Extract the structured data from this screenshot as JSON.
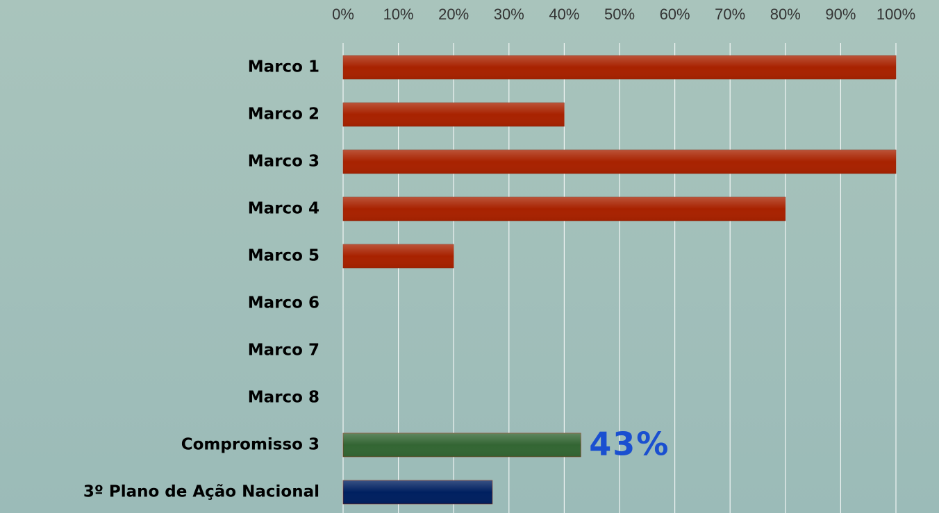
{
  "chart_data": {
    "type": "hbar",
    "categories": [
      "Marco 1",
      "Marco 2",
      "Marco 3",
      "Marco 4",
      "Marco 5",
      "Marco 6",
      "Marco 7",
      "Marco 8",
      "Compromisso 3",
      "3º Plano de Ação Nacional"
    ],
    "values": [
      100,
      40,
      100,
      80,
      20,
      0,
      0,
      0,
      43,
      27
    ],
    "value_labels": [
      null,
      null,
      null,
      null,
      null,
      null,
      null,
      null,
      "43%",
      null
    ],
    "colors": [
      "#a82200",
      "#a82200",
      "#a82200",
      "#a82200",
      "#a82200",
      "#a82200",
      "#a82200",
      "#a82200",
      "#336633",
      "#002060"
    ],
    "xlim": [
      0,
      100
    ],
    "xticks": [
      {
        "value": 0,
        "label": "0%"
      },
      {
        "value": 10,
        "label": "10%"
      },
      {
        "value": 20,
        "label": "20%"
      },
      {
        "value": 30,
        "label": "30%"
      },
      {
        "value": 40,
        "label": "40%"
      },
      {
        "value": 50,
        "label": "50%"
      },
      {
        "value": 60,
        "label": "60%"
      },
      {
        "value": 70,
        "label": "70%"
      },
      {
        "value": 80,
        "label": "80%"
      },
      {
        "value": 90,
        "label": "90%"
      },
      {
        "value": 100,
        "label": "100%"
      }
    ],
    "grid": true
  }
}
